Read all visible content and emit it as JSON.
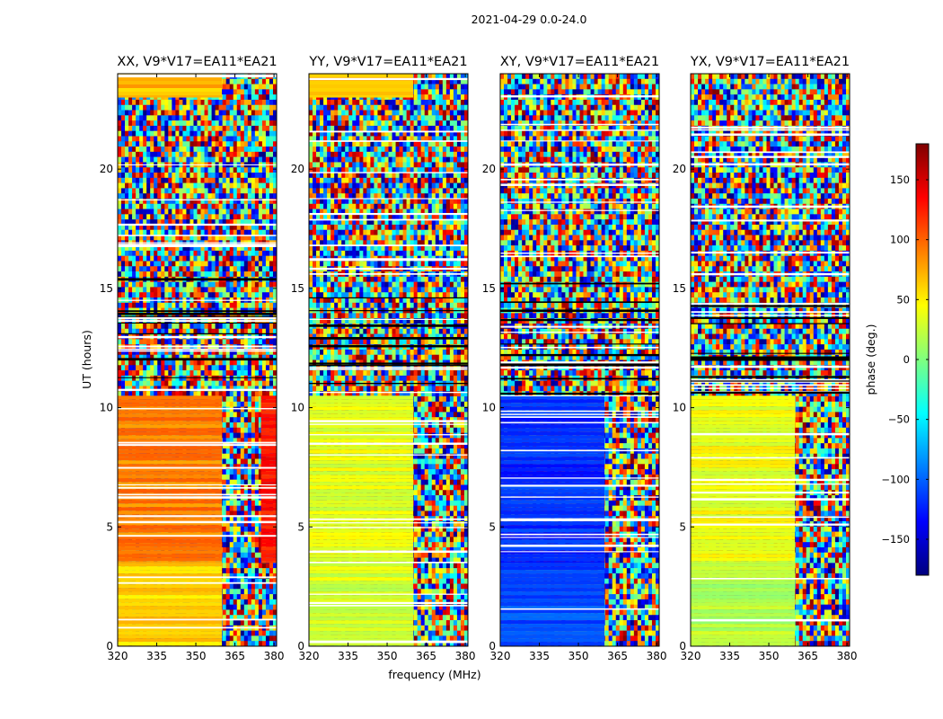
{
  "figure_title": "2021-04-29 0.0-24.0",
  "shared_xlabel": "frequency (MHz)",
  "shared_ylabel": "UT (hours)",
  "colorbar": {
    "label": "phase (deg.)",
    "range": [
      -180,
      180
    ],
    "ticks": [
      150,
      100,
      50,
      0,
      -50,
      -100,
      -150
    ],
    "tick_labels": [
      "150",
      "100",
      "50",
      "0",
      "−50",
      "−100",
      "−150"
    ],
    "colormap": "jet",
    "stops": [
      "#00007f",
      "#0000ff",
      "#007fff",
      "#00ffff",
      "#7fff7f",
      "#ffff00",
      "#ff7f00",
      "#ff0000",
      "#7f0000"
    ]
  },
  "chart_data": [
    {
      "type": "heatmap",
      "title": "XX, V9*V17=EA11*EA21",
      "xlabel": "frequency (MHz)",
      "ylabel": "UT (hours)",
      "xlim": [
        320,
        381
      ],
      "ylim": [
        0,
        24
      ],
      "xticks": [
        320,
        335,
        350,
        365,
        380
      ],
      "yticks": [
        0,
        5,
        10,
        15,
        20
      ],
      "value": "phase (deg.)",
      "regions": [
        {
          "ut": [
            0,
            3.5
          ],
          "freq": [
            320,
            360
          ],
          "phase": 60
        },
        {
          "ut": [
            3.5,
            10.5
          ],
          "freq": [
            320,
            360
          ],
          "phase": 90
        },
        {
          "ut": [
            3.5,
            10.5
          ],
          "freq": [
            375,
            381
          ],
          "phase": 130
        },
        {
          "ut": [
            10.5,
            15.5
          ],
          "freq": [
            320,
            381
          ],
          "phase": "noise"
        },
        {
          "ut": [
            23,
            24
          ],
          "freq": [
            320,
            360
          ],
          "phase": 70
        }
      ]
    },
    {
      "type": "heatmap",
      "title": "YY, V9*V17=EA11*EA21",
      "xlabel": "frequency (MHz)",
      "ylabel": "UT (hours)",
      "xlim": [
        320,
        381
      ],
      "ylim": [
        0,
        24
      ],
      "xticks": [
        320,
        335,
        350,
        365,
        380
      ],
      "yticks": [
        0,
        5,
        10,
        15,
        20
      ],
      "value": "phase (deg.)",
      "regions": [
        {
          "ut": [
            0,
            3.5
          ],
          "freq": [
            320,
            360
          ],
          "phase": 30
        },
        {
          "ut": [
            3.5,
            10.5
          ],
          "freq": [
            320,
            360
          ],
          "phase": 35
        },
        {
          "ut": [
            10.5,
            15.5
          ],
          "freq": [
            320,
            381
          ],
          "phase": "noise"
        },
        {
          "ut": [
            23,
            24
          ],
          "freq": [
            320,
            360
          ],
          "phase": 70
        }
      ]
    },
    {
      "type": "heatmap",
      "title": "XY, V9*V17=EA11*EA21",
      "xlabel": "frequency (MHz)",
      "ylabel": "UT (hours)",
      "xlim": [
        320,
        381
      ],
      "ylim": [
        0,
        24
      ],
      "xticks": [
        320,
        335,
        350,
        365,
        380
      ],
      "yticks": [
        0,
        5,
        10,
        15,
        20
      ],
      "value": "phase (deg.)",
      "regions": [
        {
          "ut": [
            0,
            3.5
          ],
          "freq": [
            320,
            360
          ],
          "phase": -110
        },
        {
          "ut": [
            3.5,
            10.5
          ],
          "freq": [
            320,
            360
          ],
          "phase": -120
        },
        {
          "ut": [
            10.5,
            24
          ],
          "freq": [
            320,
            381
          ],
          "phase": "noise"
        }
      ]
    },
    {
      "type": "heatmap",
      "title": "YX, V9*V17=EA11*EA21",
      "xlabel": "frequency (MHz)",
      "ylabel": "UT (hours)",
      "xlim": [
        320,
        381
      ],
      "ylim": [
        0,
        24
      ],
      "xticks": [
        320,
        335,
        350,
        365,
        380
      ],
      "yticks": [
        0,
        5,
        10,
        15,
        20
      ],
      "value": "phase (deg.)",
      "regions": [
        {
          "ut": [
            0,
            3.5
          ],
          "freq": [
            320,
            360
          ],
          "phase": 20
        },
        {
          "ut": [
            3.5,
            10.5
          ],
          "freq": [
            320,
            360
          ],
          "phase": 40
        },
        {
          "ut": [
            10.5,
            24
          ],
          "freq": [
            320,
            381
          ],
          "phase": "noise"
        }
      ]
    }
  ]
}
